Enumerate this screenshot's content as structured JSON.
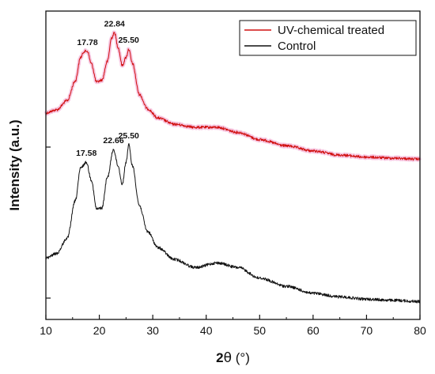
{
  "chart_data": {
    "type": "line",
    "xlabel_prefix": "2",
    "xlabel_symbol": "θ",
    "xlabel_unit": " (°)",
    "ylabel": "Intensity (a.u.)",
    "xlim": [
      10,
      80
    ],
    "xticks": [
      "10",
      "20",
      "30",
      "40",
      "50",
      "60",
      "70",
      "80"
    ],
    "y_units": "arbitrary (offset curves)",
    "grid": false,
    "legend_position": "top-right",
    "series": [
      {
        "name": "UV-chemical treated",
        "color": "#d11010",
        "shadow_color": "#f7c8e2",
        "noise": 1.6,
        "points": [
          [
            10,
            0.14
          ],
          [
            12,
            0.17
          ],
          [
            14,
            0.26
          ],
          [
            15.5,
            0.45
          ],
          [
            16.5,
            0.68
          ],
          [
            17.2,
            0.74
          ],
          [
            17.78,
            0.74
          ],
          [
            18.5,
            0.62
          ],
          [
            19.5,
            0.44
          ],
          [
            20.5,
            0.46
          ],
          [
            21.5,
            0.64
          ],
          [
            22.3,
            0.87
          ],
          [
            22.84,
            0.92
          ],
          [
            23.5,
            0.78
          ],
          [
            24.3,
            0.6
          ],
          [
            25.0,
            0.68
          ],
          [
            25.5,
            0.76
          ],
          [
            26.2,
            0.62
          ],
          [
            27.5,
            0.32
          ],
          [
            29,
            0.18
          ],
          [
            31,
            0.09
          ],
          [
            34,
            0.03
          ],
          [
            38,
            0.0
          ],
          [
            42,
            0.0
          ],
          [
            46,
            -0.05
          ],
          [
            50,
            -0.12
          ],
          [
            55,
            -0.18
          ],
          [
            60,
            -0.23
          ],
          [
            65,
            -0.27
          ],
          [
            70,
            -0.29
          ],
          [
            75,
            -0.3
          ],
          [
            80,
            -0.31
          ]
        ]
      },
      {
        "name": "Control",
        "color": "#111111",
        "noise": 1.8,
        "points": [
          [
            10,
            0.03
          ],
          [
            12,
            0.07
          ],
          [
            14,
            0.2
          ],
          [
            15.5,
            0.52
          ],
          [
            16.5,
            0.8
          ],
          [
            17.58,
            0.85
          ],
          [
            18.5,
            0.7
          ],
          [
            19.5,
            0.45
          ],
          [
            20.5,
            0.46
          ],
          [
            21.5,
            0.72
          ],
          [
            22.66,
            0.96
          ],
          [
            23.5,
            0.82
          ],
          [
            24.3,
            0.66
          ],
          [
            25.0,
            0.85
          ],
          [
            25.5,
            1.0
          ],
          [
            26.2,
            0.82
          ],
          [
            27.5,
            0.48
          ],
          [
            29,
            0.26
          ],
          [
            31,
            0.12
          ],
          [
            34,
            0.02
          ],
          [
            38,
            -0.05
          ],
          [
            42,
            -0.01
          ],
          [
            46,
            -0.05
          ],
          [
            50,
            -0.14
          ],
          [
            55,
            -0.21
          ],
          [
            60,
            -0.27
          ],
          [
            65,
            -0.3
          ],
          [
            70,
            -0.32
          ],
          [
            75,
            -0.33
          ],
          [
            80,
            -0.34
          ]
        ]
      }
    ],
    "peak_labels": [
      {
        "series": 0,
        "x": 17.78,
        "text": "17.78"
      },
      {
        "series": 0,
        "x": 22.84,
        "text": "22.84"
      },
      {
        "series": 0,
        "x": 25.5,
        "text": "25.50"
      },
      {
        "series": 1,
        "x": 17.58,
        "text": "17.58"
      },
      {
        "series": 1,
        "x": 22.66,
        "text": "22.66"
      },
      {
        "series": 1,
        "x": 25.5,
        "text": "25.50"
      }
    ]
  }
}
